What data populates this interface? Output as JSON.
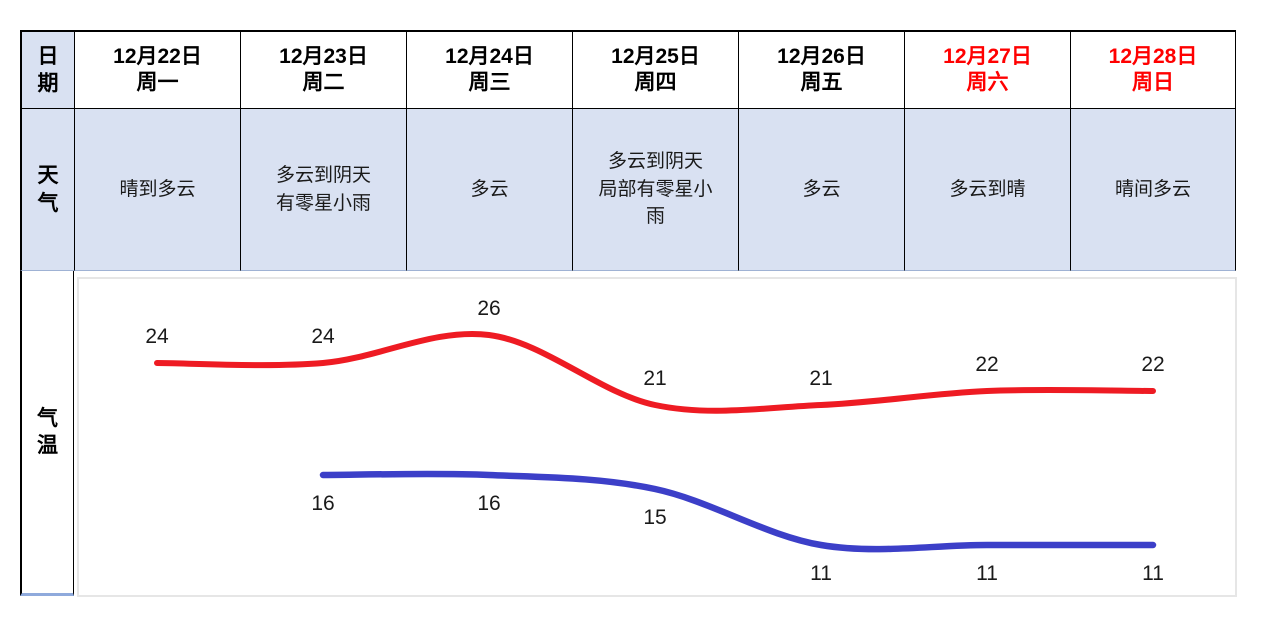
{
  "table": {
    "row_labels": {
      "date": "日期",
      "weather": "天气",
      "temperature": "气温"
    },
    "columns": [
      {
        "date": "12月22日",
        "weekday": "周一",
        "highlight": false,
        "weather": "晴到多云"
      },
      {
        "date": "12月23日",
        "weekday": "周二",
        "highlight": false,
        "weather": "多云到阴天\n有零星小雨"
      },
      {
        "date": "12月24日",
        "weekday": "周三",
        "highlight": false,
        "weather": "多云"
      },
      {
        "date": "12月25日",
        "weekday": "周四",
        "highlight": false,
        "weather": "多云到阴天\n局部有零星小\n雨"
      },
      {
        "date": "12月26日",
        "weekday": "周五",
        "highlight": false,
        "weather": "多云"
      },
      {
        "date": "12月27日",
        "weekday": "周六",
        "highlight": true,
        "weather": "多云到晴"
      },
      {
        "date": "12月28日",
        "weekday": "周日",
        "highlight": true,
        "weather": "晴间多云"
      }
    ]
  },
  "colors": {
    "header_highlight_text": "#FF0000",
    "cell_blue_background": "#D9E1F2",
    "table_border": "#000000",
    "high_line": "#EE1B23",
    "low_line": "#3C3FC8",
    "chart_frame": "#E6E6E6"
  },
  "chart_data": {
    "type": "line",
    "categories": [
      "12月22日",
      "12月23日",
      "12月24日",
      "12月25日",
      "12月26日",
      "12月27日",
      "12月28日"
    ],
    "series": [
      {
        "name": "high",
        "color": "#EE1B23",
        "values": [
          24,
          24,
          26,
          21,
          21,
          22,
          22
        ]
      },
      {
        "name": "low",
        "color": "#3C3FC8",
        "values": [
          null,
          16,
          16,
          15,
          11,
          11,
          11
        ]
      }
    ],
    "title": "",
    "xlabel": "",
    "ylabel": "气温",
    "ylim": [
      9,
      28
    ],
    "grid": false,
    "legend": "none",
    "data_labels": "每点标注数值"
  }
}
